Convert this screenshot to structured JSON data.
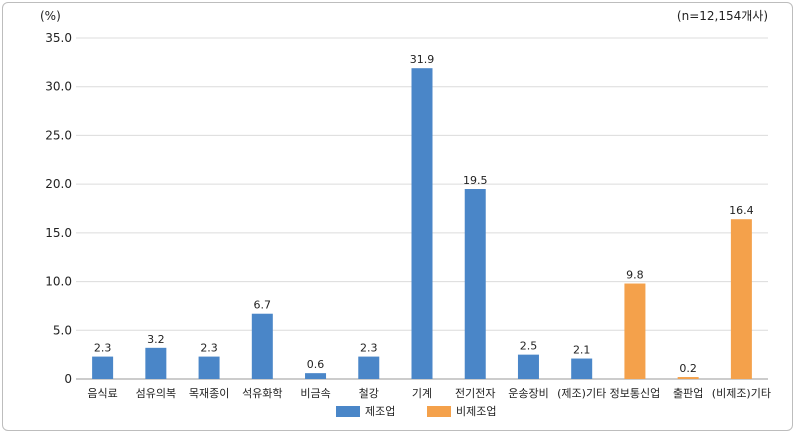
{
  "chart_data": {
    "type": "bar",
    "unit_label": "(%)",
    "note": "(n=12,154개사)",
    "ylim": [
      0,
      35
    ],
    "yticks": [
      0,
      5,
      10,
      15,
      20,
      25,
      30,
      35
    ],
    "ytick_labels": [
      "0",
      "5.0",
      "10.0",
      "15.0",
      "20.0",
      "25.0",
      "30.0",
      "35.0"
    ],
    "grid": true,
    "legend_position": "bottom",
    "categories": [
      "음식료",
      "섬유의복",
      "목재종이",
      "석유화학",
      "비금속",
      "철강",
      "기계",
      "전기전자",
      "운송장비",
      "(제조)기타",
      "정보통신업",
      "출판업",
      "(비제조)기타"
    ],
    "values": [
      2.3,
      3.2,
      2.3,
      6.7,
      0.6,
      2.3,
      31.9,
      19.5,
      2.5,
      2.1,
      9.8,
      0.2,
      16.4
    ],
    "value_labels": [
      "2.3",
      "3.2",
      "2.3",
      "6.7",
      "0.6",
      "2.3",
      "31.9",
      "19.5",
      "2.5",
      "2.1",
      "9.8",
      "0.2",
      "16.4"
    ],
    "groups": [
      "mfg",
      "mfg",
      "mfg",
      "mfg",
      "mfg",
      "mfg",
      "mfg",
      "mfg",
      "mfg",
      "mfg",
      "nonmfg",
      "nonmfg",
      "nonmfg"
    ],
    "series": [
      {
        "key": "mfg",
        "name": "제조업",
        "color": "#4a86c8"
      },
      {
        "key": "nonmfg",
        "name": "비제조업",
        "color": "#f4a14b"
      }
    ]
  }
}
